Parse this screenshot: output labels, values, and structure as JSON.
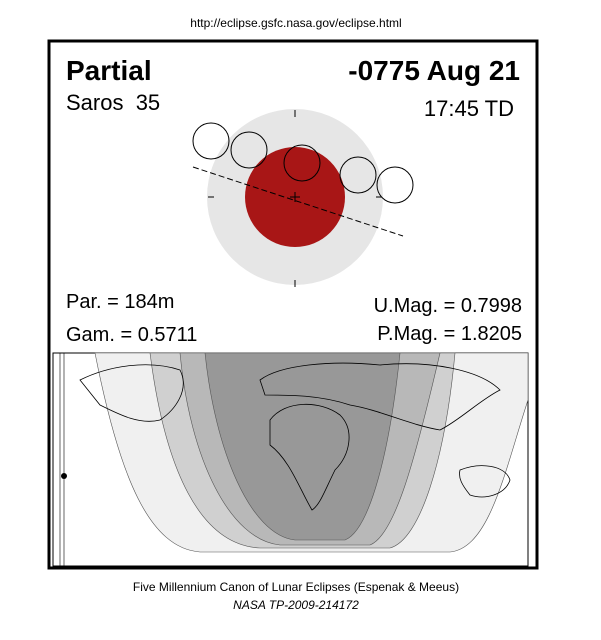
{
  "header": {
    "url": "http://eclipse.gsfc.nasa.gov/eclipse.html"
  },
  "eclipse": {
    "type": "Partial",
    "date": "-0775 Aug 21",
    "saros": "Saros  35",
    "time": "17:45 TD",
    "parameters": {
      "par": "Par. = 184m",
      "gam": "Gam. = 0.5711",
      "umag": "U.Mag. = 0.7998",
      "pmag": "P.Mag. = 1.8205"
    }
  },
  "footer": {
    "canon": "Five Millennium Canon of Lunar Eclipses (Espenak & Meeus)",
    "publication": "NASA TP-2009-214172"
  }
}
